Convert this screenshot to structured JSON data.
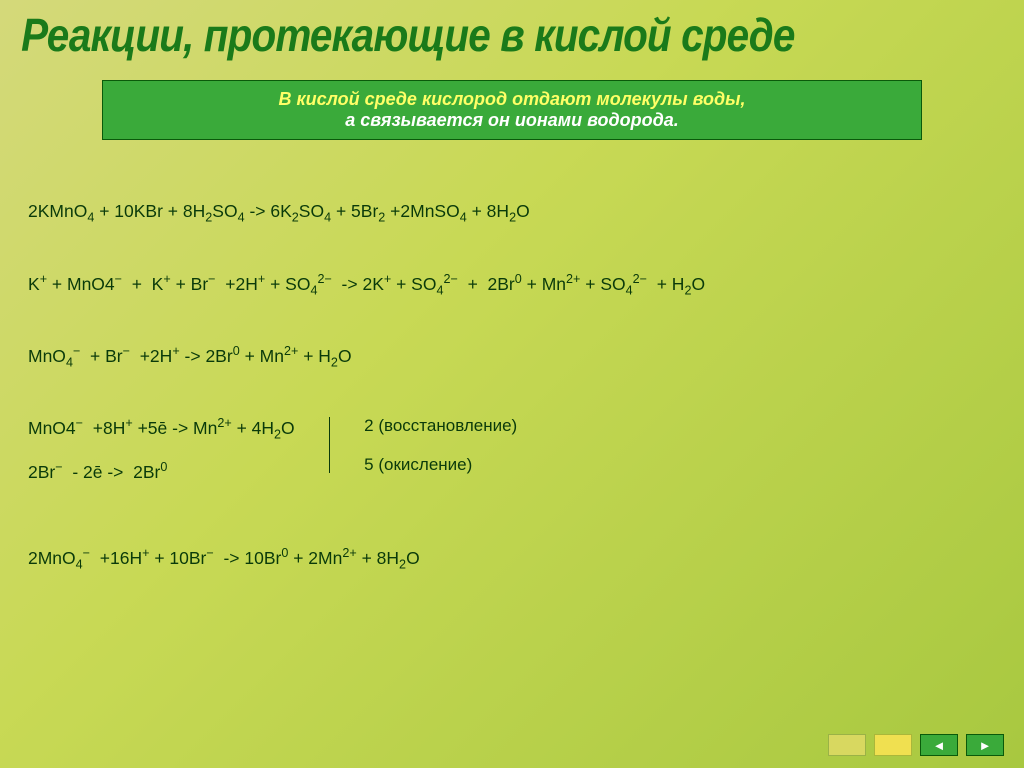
{
  "title": "Реакции, протекающие в кислой среде",
  "info": {
    "line1": "В кислой среде кислород отдают молекулы воды,",
    "line2": "а связывается он ионами водорода."
  },
  "equations": {
    "eq1_html": "2KMnO<span class='sub'>4</span> + 10KBr + 8H<span class='sub'>2</span>SO<span class='sub'>4</span> -> 6K<span class='sub'>2</span>SO<span class='sub'>4</span> + 5Br<span class='sub'>2</span> +2MnSO<span class='sub'>4</span> + 8H<span class='sub'>2</span>O",
    "eq2_html": "K<span class='sup'>+</span> + MnO4<span class='sup'>−</span> &nbsp;+ &nbsp;K<span class='sup'>+</span> + Br<span class='sup'>−</span> &nbsp;+2H<span class='sup'>+</span> + SO<span class='sub'>4</span><span class='sup'>2−</span> &nbsp;-> 2K<span class='sup'>+</span> + SO<span class='sub'>4</span><span class='sup'>2−</span> &nbsp;+ &nbsp;2Br<span class='sup'>0</span> + Mn<span class='sup'>2+</span> + SO<span class='sub'>4</span><span class='sup'>2−</span> &nbsp;+ H<span class='sub'>2</span>O",
    "eq3_html": "MnO<span class='sub'>4</span><span class='sup'>−</span> &nbsp;+ Br<span class='sup'>−</span> &nbsp;+2H<span class='sup'>+</span> -> 2Br<span class='sup'>0</span> + Mn<span class='sup'>2+</span> + H<span class='sub'>2</span>O",
    "half1_html": "MnO4<span class='sup'>−</span> &nbsp;+8H<span class='sup'>+</span> +5ē -> Mn<span class='sup'>2+</span> + 4H<span class='sub'>2</span>O",
    "half2_html": "2Br<span class='sup'>−</span> &nbsp;- 2ē -> &nbsp;2Br<span class='sup'>0</span>",
    "coeff1": "2 (восстановление)",
    "coeff2": "5 (окисление)",
    "eq4_html": "2MnO<span class='sub'>4</span><span class='sup'>−</span> &nbsp;+16H<span class='sup'>+</span> + 10Br<span class='sup'>−</span> &nbsp;-> 10Br<span class='sup'>0</span> + 2Mn<span class='sup'>2+</span> + 8H<span class='sub'>2</span>O"
  },
  "nav": {
    "prev": "◄",
    "next": "►"
  },
  "style": {
    "title_color": "#1a7a1a",
    "box_bg": "#3aaa3a",
    "box_line1_color": "#ffff66",
    "box_line2_color": "#ffffff",
    "text_color": "#0a3a0a",
    "bg_gradient_start": "#d4d97a",
    "bg_gradient_end": "#a8c840"
  }
}
